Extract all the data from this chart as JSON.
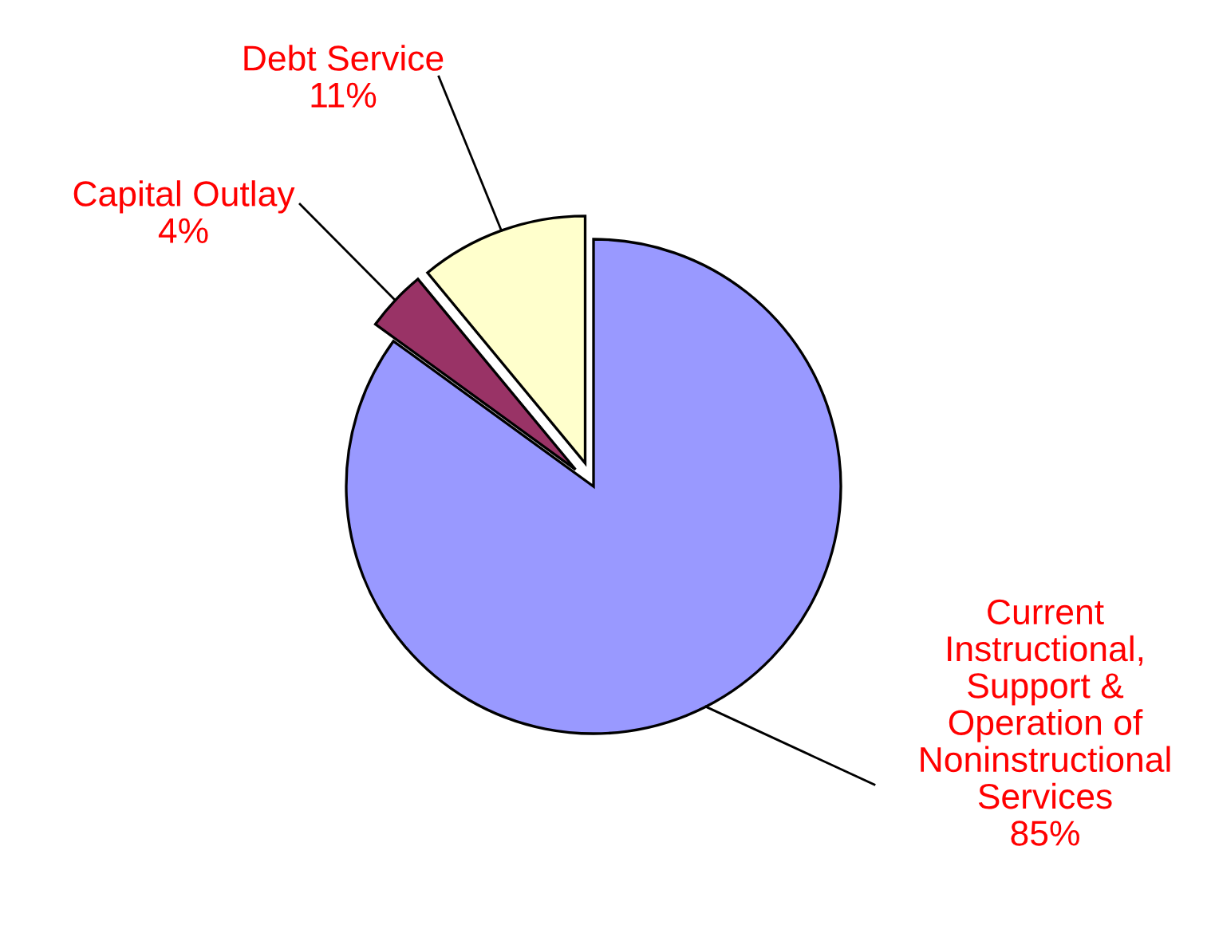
{
  "chart_data": {
    "type": "pie",
    "categories": [
      "Current\nInstructional,\nSupport &\nOperation of\nNoninstructional\nServices",
      "Capital Outlay",
      "Debt Service"
    ],
    "values": [
      85,
      4,
      11
    ],
    "value_labels": [
      "85%",
      "4%",
      "11%"
    ],
    "colors": [
      "#9999ff",
      "#993366",
      "#ffffcc"
    ],
    "legend": false
  }
}
